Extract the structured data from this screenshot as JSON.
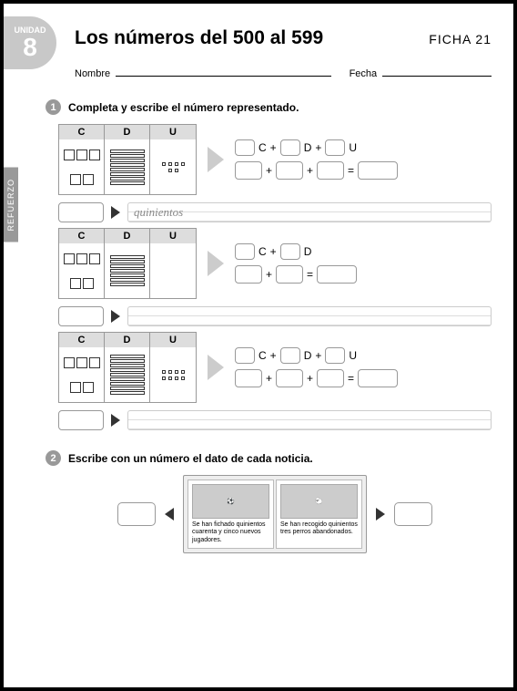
{
  "unit": {
    "label": "UNIDAD",
    "number": "8"
  },
  "title": "Los números del 500 al 599",
  "ficha": "FICHA 21",
  "name_label": "Nombre",
  "date_label": "Fecha",
  "side_tab": "REFUERZO",
  "q1": {
    "num": "1",
    "text": "Completa y escribe el número representado.",
    "headers": {
      "c": "C",
      "d": "D",
      "u": "U"
    },
    "ex1": {
      "word": "quinientos",
      "labels": [
        "C",
        "D",
        "U"
      ]
    },
    "ex2": {
      "labels": [
        "C",
        "D"
      ]
    },
    "ex3": {
      "labels": [
        "C",
        "D",
        "U"
      ]
    }
  },
  "q2": {
    "num": "2",
    "text": "Escribe con un número el dato de cada noticia.",
    "news1": "Se han fichado quinientos cuarenta y cinco nuevos jugadores.",
    "news2": "Se han recogido quinientos tres perros abandonados."
  }
}
